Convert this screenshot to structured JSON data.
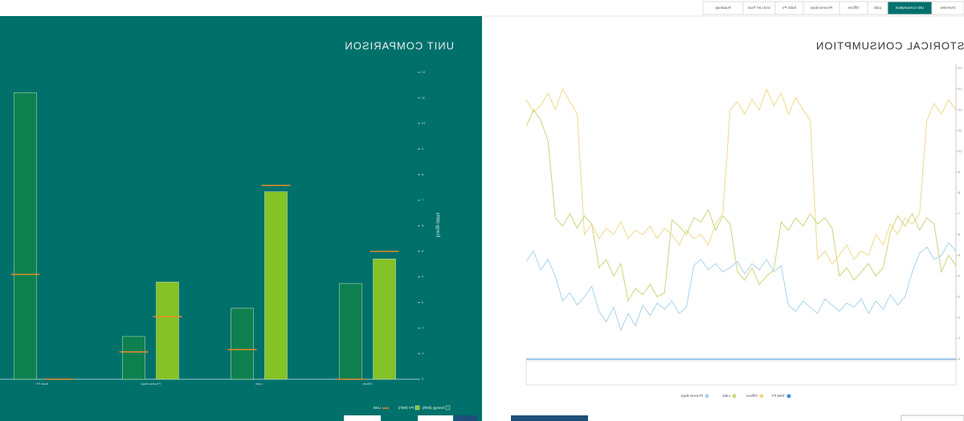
{
  "tabs": [
    "Overview",
    "Unit Consumption",
    "Labs",
    "Offices",
    "Process Bays",
    "Solar PV",
    "Unit Lee Trust",
    "Roadmap"
  ],
  "active_tab": 1,
  "historical": {
    "chart_data": {
      "type": "line",
      "title": "HISTORICAL CONSUMPTION",
      "ylim": [
        0,
        14
      ],
      "yticks": [
        0,
        1,
        2,
        3,
        4,
        5,
        6,
        7,
        8,
        9,
        10,
        11,
        12,
        13,
        14
      ],
      "series": [
        {
          "name": "Total PV",
          "color": "#3b8fd9",
          "values": [
            0,
            0,
            0,
            0,
            0,
            0,
            0,
            0,
            0,
            0,
            0,
            0,
            0,
            0,
            0,
            0,
            0,
            0,
            0,
            0,
            0,
            0,
            0,
            0,
            0,
            0,
            0,
            0,
            0,
            0,
            0,
            0,
            0,
            0,
            0,
            0,
            0,
            0,
            0,
            0,
            0,
            0,
            0,
            0,
            0,
            0,
            0,
            0,
            0,
            0,
            0,
            0,
            0,
            0,
            0,
            0,
            0,
            0,
            0,
            0
          ]
        },
        {
          "name": "Offices",
          "color": "#f0d98c",
          "values": [
            12,
            12.5,
            11.8,
            12.3,
            11.5,
            7,
            6.5,
            6.8,
            6,
            6.5,
            5.5,
            6,
            5,
            5.2,
            4.8,
            5.5,
            5,
            4.6,
            5.2,
            4.8,
            11.5,
            12,
            12.6,
            11.8,
            12.8,
            12.2,
            13,
            12,
            12.5,
            11.8,
            12.4,
            12,
            7,
            6.5,
            5.5,
            6,
            5.8,
            6.2,
            5.5,
            6,
            6.3,
            5.8,
            6.4,
            6,
            6.2,
            5.8,
            6.6,
            6,
            6.3,
            5.8,
            6.5,
            6,
            11.8,
            12.4,
            13,
            12,
            12.8,
            12.2,
            11.9,
            12.5
          ]
        },
        {
          "name": "Labs",
          "color": "#cbd67c",
          "values": [
            4.5,
            5,
            4.2,
            6.5,
            6.8,
            6.2,
            7,
            6.4,
            6.9,
            6.1,
            4.4,
            4,
            4.6,
            4.2,
            3.8,
            4.4,
            4,
            6.3,
            6.8,
            6.5,
            7,
            6.4,
            6.8,
            6.2,
            6.6,
            4.3,
            4,
            3.6,
            4.4,
            3.8,
            4.2,
            6.5,
            6.9,
            6.2,
            7.2,
            6.6,
            6.8,
            6,
            6.4,
            6.7,
            3.2,
            3,
            3.6,
            3.1,
            3.4,
            2.8,
            4.6,
            4,
            4.8,
            4.4,
            6.5,
            6.9,
            6.3,
            7,
            6.4,
            6.8,
            10.5,
            11.5,
            12,
            11.2
          ]
        },
        {
          "name": "Process Bays",
          "color": "#a8d3ec",
          "values": [
            5.2,
            5.6,
            5,
            4.8,
            5.4,
            5.1,
            4.2,
            3,
            2.6,
            3.1,
            2.4,
            2.8,
            2.2,
            2.9,
            2.5,
            2.7,
            2.3,
            2.6,
            2.9,
            2.2,
            2.5,
            2.8,
            2.3,
            2.6,
            4.5,
            4.2,
            4.8,
            4.3,
            4.6,
            4.1,
            4.7,
            4.4,
            4.2,
            4.6,
            4.3,
            4.8,
            4.5,
            2.5,
            2.2,
            2.8,
            2.4,
            2.7,
            2.1,
            2.6,
            1.6,
            2.2,
            1.4,
            2.5,
            1.8,
            2.3,
            3.5,
            3,
            2.6,
            3.2,
            2.8,
            4,
            4.8,
            4.3,
            5.2,
            4.7
          ]
        }
      ]
    }
  },
  "comparison": {
    "chart_data": {
      "type": "bar",
      "title": "UNIT COMPARISON",
      "y_label": "Energy (kWh)",
      "categories": [
        "Offices",
        "Labs",
        "Process Bays",
        "Solar PV"
      ],
      "ylim": [
        0,
        12
      ],
      "yticks": [
        0,
        1,
        2,
        3,
        4,
        5,
        6,
        7,
        8,
        9,
        10,
        11,
        12
      ],
      "limit_name": "Limit",
      "limit_color": "#e58a2a",
      "series": [
        {
          "name": "PV (kWh)",
          "color": "#84c225",
          "values": [
            4.7,
            7.33,
            3.8,
            0
          ],
          "limits": [
            5.0,
            7.58,
            2.45,
            0
          ]
        },
        {
          "name": "Energy (kWh)",
          "color": "#0e8050",
          "values": [
            3.74,
            2.77,
            1.67,
            11.2
          ],
          "limits": [
            0,
            1.16,
            1.07,
            4.1
          ]
        }
      ]
    }
  }
}
